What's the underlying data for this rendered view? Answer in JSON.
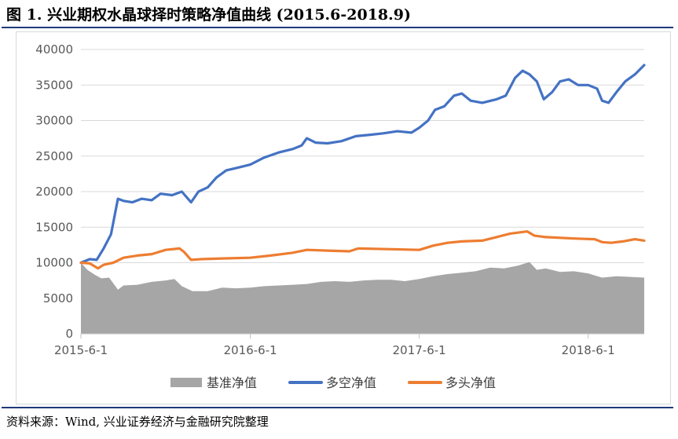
{
  "figure": {
    "title": "图 1. 兴业期权水晶球择时策略净值曲线 (2015.6-2018.9)",
    "source": "资料来源：Wind, 兴业证券经济与金融研究院整理"
  },
  "chart_data": {
    "type": "line",
    "title": "",
    "xlabel": "",
    "ylabel": "",
    "x_ticks": [
      "2015-6-1",
      "2016-6-1",
      "2017-6-1",
      "2018-6-1"
    ],
    "y_ticks": [
      0,
      5000,
      10000,
      15000,
      20000,
      25000,
      30000,
      35000,
      40000
    ],
    "ylim": [
      0,
      40000
    ],
    "xlim": [
      "2015-06-01",
      "2018-09-30"
    ],
    "grid": "horizontal",
    "legend_position": "bottom",
    "series": [
      {
        "name": "基准净值",
        "kind": "area",
        "color": "#a6a6a6",
        "points": [
          [
            "2015-06-01",
            10000
          ],
          [
            "2015-06-15",
            9000
          ],
          [
            "2015-07-01",
            8300
          ],
          [
            "2015-07-15",
            7800
          ],
          [
            "2015-08-01",
            7900
          ],
          [
            "2015-08-20",
            6200
          ],
          [
            "2015-09-01",
            6800
          ],
          [
            "2015-10-01",
            6900
          ],
          [
            "2015-11-01",
            7300
          ],
          [
            "2015-12-01",
            7500
          ],
          [
            "2015-12-20",
            7700
          ],
          [
            "2016-01-05",
            6700
          ],
          [
            "2016-01-28",
            6000
          ],
          [
            "2016-03-01",
            6000
          ],
          [
            "2016-04-01",
            6500
          ],
          [
            "2016-05-01",
            6400
          ],
          [
            "2016-06-01",
            6500
          ],
          [
            "2016-07-01",
            6700
          ],
          [
            "2016-08-01",
            6800
          ],
          [
            "2016-09-01",
            6900
          ],
          [
            "2016-10-01",
            7000
          ],
          [
            "2016-11-01",
            7300
          ],
          [
            "2016-12-01",
            7400
          ],
          [
            "2017-01-01",
            7300
          ],
          [
            "2017-02-01",
            7500
          ],
          [
            "2017-03-01",
            7600
          ],
          [
            "2017-04-01",
            7600
          ],
          [
            "2017-05-01",
            7400
          ],
          [
            "2017-06-01",
            7700
          ],
          [
            "2017-07-01",
            8100
          ],
          [
            "2017-08-01",
            8400
          ],
          [
            "2017-09-01",
            8600
          ],
          [
            "2017-10-01",
            8800
          ],
          [
            "2017-11-01",
            9300
          ],
          [
            "2017-12-01",
            9200
          ],
          [
            "2018-01-01",
            9600
          ],
          [
            "2018-01-25",
            10100
          ],
          [
            "2018-02-10",
            9000
          ],
          [
            "2018-03-01",
            9200
          ],
          [
            "2018-04-01",
            8700
          ],
          [
            "2018-05-01",
            8800
          ],
          [
            "2018-06-01",
            8500
          ],
          [
            "2018-07-01",
            7900
          ],
          [
            "2018-08-01",
            8100
          ],
          [
            "2018-09-01",
            8000
          ],
          [
            "2018-09-30",
            7900
          ]
        ]
      },
      {
        "name": "多空净值",
        "kind": "line",
        "color": "#4472c4",
        "points": [
          [
            "2015-06-01",
            10000
          ],
          [
            "2015-06-20",
            10500
          ],
          [
            "2015-07-05",
            10400
          ],
          [
            "2015-07-20",
            12000
          ],
          [
            "2015-08-05",
            14000
          ],
          [
            "2015-08-20",
            19000
          ],
          [
            "2015-09-01",
            18700
          ],
          [
            "2015-09-20",
            18500
          ],
          [
            "2015-10-10",
            19000
          ],
          [
            "2015-11-01",
            18800
          ],
          [
            "2015-11-20",
            19700
          ],
          [
            "2015-12-15",
            19500
          ],
          [
            "2016-01-05",
            20000
          ],
          [
            "2016-01-25",
            18500
          ],
          [
            "2016-02-10",
            20000
          ],
          [
            "2016-03-01",
            20600
          ],
          [
            "2016-03-20",
            22000
          ],
          [
            "2016-04-10",
            23000
          ],
          [
            "2016-05-01",
            23300
          ],
          [
            "2016-06-01",
            23800
          ],
          [
            "2016-07-01",
            24800
          ],
          [
            "2016-08-01",
            25500
          ],
          [
            "2016-09-01",
            26000
          ],
          [
            "2016-09-20",
            26500
          ],
          [
            "2016-10-01",
            27500
          ],
          [
            "2016-10-20",
            26900
          ],
          [
            "2016-11-15",
            26800
          ],
          [
            "2016-12-15",
            27100
          ],
          [
            "2017-01-15",
            27800
          ],
          [
            "2017-02-15",
            28000
          ],
          [
            "2017-03-15",
            28200
          ],
          [
            "2017-04-15",
            28500
          ],
          [
            "2017-05-15",
            28300
          ],
          [
            "2017-06-01",
            29000
          ],
          [
            "2017-06-20",
            30000
          ],
          [
            "2017-07-05",
            31500
          ],
          [
            "2017-07-25",
            32000
          ],
          [
            "2017-08-15",
            33500
          ],
          [
            "2017-09-01",
            33800
          ],
          [
            "2017-09-20",
            32800
          ],
          [
            "2017-10-15",
            32500
          ],
          [
            "2017-11-15",
            33000
          ],
          [
            "2017-12-05",
            33500
          ],
          [
            "2017-12-25",
            36000
          ],
          [
            "2018-01-10",
            37000
          ],
          [
            "2018-01-25",
            36500
          ],
          [
            "2018-02-10",
            35500
          ],
          [
            "2018-02-25",
            33000
          ],
          [
            "2018-03-15",
            34000
          ],
          [
            "2018-04-01",
            35500
          ],
          [
            "2018-04-20",
            35800
          ],
          [
            "2018-05-10",
            35000
          ],
          [
            "2018-06-01",
            35000
          ],
          [
            "2018-06-20",
            34500
          ],
          [
            "2018-07-01",
            32800
          ],
          [
            "2018-07-15",
            32500
          ],
          [
            "2018-08-01",
            34000
          ],
          [
            "2018-08-20",
            35500
          ],
          [
            "2018-09-10",
            36500
          ],
          [
            "2018-09-30",
            37800
          ]
        ]
      },
      {
        "name": "多头净值",
        "kind": "line",
        "color": "#ed7d31",
        "points": [
          [
            "2015-06-01",
            10000
          ],
          [
            "2015-06-20",
            9900
          ],
          [
            "2015-07-08",
            9200
          ],
          [
            "2015-07-20",
            9700
          ],
          [
            "2015-08-10",
            10000
          ],
          [
            "2015-09-01",
            10700
          ],
          [
            "2015-10-01",
            11000
          ],
          [
            "2015-11-01",
            11200
          ],
          [
            "2015-12-01",
            11800
          ],
          [
            "2015-12-31",
            12000
          ],
          [
            "2016-01-10",
            11500
          ],
          [
            "2016-01-25",
            10400
          ],
          [
            "2016-02-15",
            10500
          ],
          [
            "2016-04-01",
            10600
          ],
          [
            "2016-06-01",
            10700
          ],
          [
            "2016-07-15",
            11000
          ],
          [
            "2016-09-01",
            11400
          ],
          [
            "2016-10-01",
            11800
          ],
          [
            "2016-11-15",
            11700
          ],
          [
            "2017-01-01",
            11600
          ],
          [
            "2017-01-20",
            12000
          ],
          [
            "2017-04-01",
            11900
          ],
          [
            "2017-06-01",
            11800
          ],
          [
            "2017-07-01",
            12400
          ],
          [
            "2017-08-01",
            12800
          ],
          [
            "2017-09-01",
            13000
          ],
          [
            "2017-10-15",
            13100
          ],
          [
            "2017-11-15",
            13600
          ],
          [
            "2017-12-15",
            14100
          ],
          [
            "2018-01-20",
            14400
          ],
          [
            "2018-02-05",
            13800
          ],
          [
            "2018-03-01",
            13600
          ],
          [
            "2018-05-01",
            13400
          ],
          [
            "2018-06-15",
            13300
          ],
          [
            "2018-07-01",
            12900
          ],
          [
            "2018-07-20",
            12800
          ],
          [
            "2018-08-15",
            13000
          ],
          [
            "2018-09-10",
            13300
          ],
          [
            "2018-09-30",
            13100
          ]
        ]
      }
    ]
  }
}
